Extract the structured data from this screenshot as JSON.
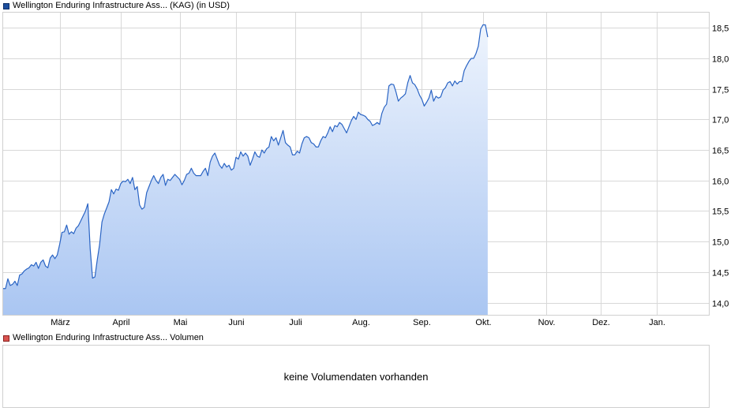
{
  "price_legend": "Wellington Enduring Infrastructure Ass... (KAG) (in USD)",
  "volume_legend": "Wellington Enduring Infrastructure Ass... Volumen",
  "volume_message": "keine Volumendaten vorhanden",
  "colors": {
    "line": "#2a64c4",
    "fill_top": "#eef4fd",
    "fill_bottom": "#aac6f2",
    "grid": "#d8d8d8"
  },
  "chart_data": {
    "type": "area",
    "title": "",
    "xlabel": "",
    "ylabel": "",
    "ylim": [
      13.8,
      18.75
    ],
    "yticks": [
      14.0,
      14.5,
      15.0,
      15.5,
      16.0,
      16.5,
      17.0,
      17.5,
      18.0,
      18.5
    ],
    "ytick_labels": [
      "14,0",
      "14,5",
      "15,0",
      "15,5",
      "16,0",
      "16,5",
      "17,0",
      "17,5",
      "18,0",
      "18,5"
    ],
    "xrange": [
      0,
      300
    ],
    "xticks": [
      {
        "x": 24,
        "label": "März"
      },
      {
        "x": 50,
        "label": "April"
      },
      {
        "x": 75,
        "label": "Mai"
      },
      {
        "x": 99,
        "label": "Juni"
      },
      {
        "x": 124,
        "label": "Juli"
      },
      {
        "x": 152,
        "label": "Aug."
      },
      {
        "x": 178,
        "label": "Sep."
      },
      {
        "x": 204,
        "label": "Okt."
      },
      {
        "x": 231,
        "label": "Nov."
      },
      {
        "x": 254,
        "label": "Dez."
      },
      {
        "x": 278,
        "label": "Jan."
      }
    ],
    "grid": true,
    "series": [
      {
        "points": [
          [
            0,
            14.23
          ],
          [
            1,
            14.23
          ],
          [
            2,
            14.39
          ],
          [
            3,
            14.28
          ],
          [
            4,
            14.3
          ],
          [
            5,
            14.35
          ],
          [
            6,
            14.28
          ],
          [
            7,
            14.45
          ],
          [
            8,
            14.47
          ],
          [
            9,
            14.52
          ],
          [
            10,
            14.55
          ],
          [
            11,
            14.57
          ],
          [
            12,
            14.62
          ],
          [
            13,
            14.6
          ],
          [
            14,
            14.66
          ],
          [
            15,
            14.56
          ],
          [
            16,
            14.66
          ],
          [
            17,
            14.7
          ],
          [
            18,
            14.6
          ],
          [
            19,
            14.57
          ],
          [
            20,
            14.73
          ],
          [
            21,
            14.78
          ],
          [
            22,
            14.72
          ],
          [
            23,
            14.78
          ],
          [
            24,
            14.95
          ],
          [
            25,
            15.15
          ],
          [
            26,
            15.16
          ],
          [
            27,
            15.27
          ],
          [
            28,
            15.12
          ],
          [
            29,
            15.16
          ],
          [
            30,
            15.13
          ],
          [
            31,
            15.22
          ],
          [
            32,
            15.26
          ],
          [
            33,
            15.34
          ],
          [
            34,
            15.42
          ],
          [
            35,
            15.5
          ],
          [
            36,
            15.62
          ],
          [
            37,
            14.88
          ],
          [
            38,
            14.4
          ],
          [
            39,
            14.42
          ],
          [
            40,
            14.7
          ],
          [
            41,
            14.95
          ],
          [
            42,
            15.32
          ],
          [
            43,
            15.45
          ],
          [
            44,
            15.55
          ],
          [
            45,
            15.65
          ],
          [
            46,
            15.85
          ],
          [
            47,
            15.78
          ],
          [
            48,
            15.86
          ],
          [
            49,
            15.84
          ],
          [
            50,
            15.95
          ],
          [
            51,
            15.99
          ],
          [
            52,
            15.98
          ],
          [
            53,
            16.02
          ],
          [
            54,
            15.95
          ],
          [
            55,
            16.05
          ],
          [
            56,
            15.85
          ],
          [
            57,
            15.9
          ],
          [
            58,
            15.6
          ],
          [
            59,
            15.53
          ],
          [
            60,
            15.56
          ],
          [
            61,
            15.8
          ],
          [
            62,
            15.9
          ],
          [
            63,
            16.0
          ],
          [
            64,
            16.08
          ],
          [
            65,
            16.0
          ],
          [
            66,
            15.95
          ],
          [
            67,
            16.05
          ],
          [
            68,
            16.1
          ],
          [
            69,
            15.92
          ],
          [
            70,
            16.02
          ],
          [
            71,
            16.0
          ],
          [
            72,
            16.05
          ],
          [
            73,
            16.1
          ],
          [
            74,
            16.06
          ],
          [
            75,
            16.02
          ],
          [
            76,
            15.93
          ],
          [
            77,
            16.0
          ],
          [
            78,
            16.1
          ],
          [
            79,
            16.12
          ],
          [
            80,
            16.2
          ],
          [
            81,
            16.12
          ],
          [
            82,
            16.08
          ],
          [
            83,
            16.08
          ],
          [
            84,
            16.08
          ],
          [
            85,
            16.15
          ],
          [
            86,
            16.2
          ],
          [
            87,
            16.08
          ],
          [
            88,
            16.3
          ],
          [
            89,
            16.4
          ],
          [
            90,
            16.45
          ],
          [
            91,
            16.35
          ],
          [
            92,
            16.25
          ],
          [
            93,
            16.2
          ],
          [
            94,
            16.28
          ],
          [
            95,
            16.22
          ],
          [
            96,
            16.25
          ],
          [
            97,
            16.17
          ],
          [
            98,
            16.2
          ],
          [
            99,
            16.38
          ],
          [
            100,
            16.35
          ],
          [
            101,
            16.47
          ],
          [
            102,
            16.4
          ],
          [
            103,
            16.45
          ],
          [
            104,
            16.4
          ],
          [
            105,
            16.25
          ],
          [
            106,
            16.35
          ],
          [
            107,
            16.47
          ],
          [
            108,
            16.4
          ],
          [
            109,
            16.38
          ],
          [
            110,
            16.5
          ],
          [
            111,
            16.45
          ],
          [
            112,
            16.52
          ],
          [
            113,
            16.55
          ],
          [
            114,
            16.72
          ],
          [
            115,
            16.65
          ],
          [
            116,
            16.7
          ],
          [
            117,
            16.58
          ],
          [
            118,
            16.7
          ],
          [
            119,
            16.82
          ],
          [
            120,
            16.62
          ],
          [
            121,
            16.58
          ],
          [
            122,
            16.55
          ],
          [
            123,
            16.42
          ],
          [
            124,
            16.42
          ],
          [
            125,
            16.48
          ],
          [
            126,
            16.45
          ],
          [
            127,
            16.6
          ],
          [
            128,
            16.7
          ],
          [
            129,
            16.72
          ],
          [
            130,
            16.7
          ],
          [
            131,
            16.62
          ],
          [
            132,
            16.6
          ],
          [
            133,
            16.55
          ],
          [
            134,
            16.55
          ],
          [
            135,
            16.65
          ],
          [
            136,
            16.72
          ],
          [
            137,
            16.7
          ],
          [
            138,
            16.78
          ],
          [
            139,
            16.88
          ],
          [
            140,
            16.8
          ],
          [
            141,
            16.9
          ],
          [
            142,
            16.88
          ],
          [
            143,
            16.95
          ],
          [
            144,
            16.92
          ],
          [
            145,
            16.85
          ],
          [
            146,
            16.78
          ],
          [
            147,
            16.88
          ],
          [
            148,
            16.98
          ],
          [
            149,
            17.05
          ],
          [
            150,
            17.0
          ],
          [
            151,
            17.12
          ],
          [
            152,
            17.08
          ],
          [
            153,
            17.07
          ],
          [
            154,
            17.05
          ],
          [
            155,
            17.0
          ],
          [
            156,
            16.97
          ],
          [
            157,
            16.9
          ],
          [
            158,
            16.92
          ],
          [
            159,
            16.95
          ],
          [
            160,
            16.92
          ],
          [
            161,
            17.1
          ],
          [
            162,
            17.2
          ],
          [
            163,
            17.25
          ],
          [
            164,
            17.55
          ],
          [
            165,
            17.58
          ],
          [
            166,
            17.57
          ],
          [
            167,
            17.45
          ],
          [
            168,
            17.3
          ],
          [
            169,
            17.35
          ],
          [
            170,
            17.38
          ],
          [
            171,
            17.42
          ],
          [
            172,
            17.6
          ],
          [
            173,
            17.72
          ],
          [
            174,
            17.6
          ],
          [
            175,
            17.57
          ],
          [
            176,
            17.5
          ],
          [
            177,
            17.4
          ],
          [
            178,
            17.33
          ],
          [
            179,
            17.22
          ],
          [
            180,
            17.28
          ],
          [
            181,
            17.35
          ],
          [
            182,
            17.48
          ],
          [
            183,
            17.3
          ],
          [
            184,
            17.38
          ],
          [
            185,
            17.35
          ],
          [
            186,
            17.37
          ],
          [
            187,
            17.48
          ],
          [
            188,
            17.52
          ],
          [
            189,
            17.6
          ],
          [
            190,
            17.62
          ],
          [
            191,
            17.55
          ],
          [
            192,
            17.63
          ],
          [
            193,
            17.58
          ],
          [
            194,
            17.62
          ],
          [
            195,
            17.62
          ],
          [
            196,
            17.8
          ],
          [
            197,
            17.88
          ],
          [
            198,
            17.95
          ],
          [
            199,
            18.0
          ],
          [
            200,
            18.0
          ],
          [
            201,
            18.08
          ],
          [
            202,
            18.2
          ],
          [
            203,
            18.48
          ],
          [
            204,
            18.55
          ],
          [
            205,
            18.55
          ],
          [
            206,
            18.35
          ]
        ]
      }
    ]
  }
}
